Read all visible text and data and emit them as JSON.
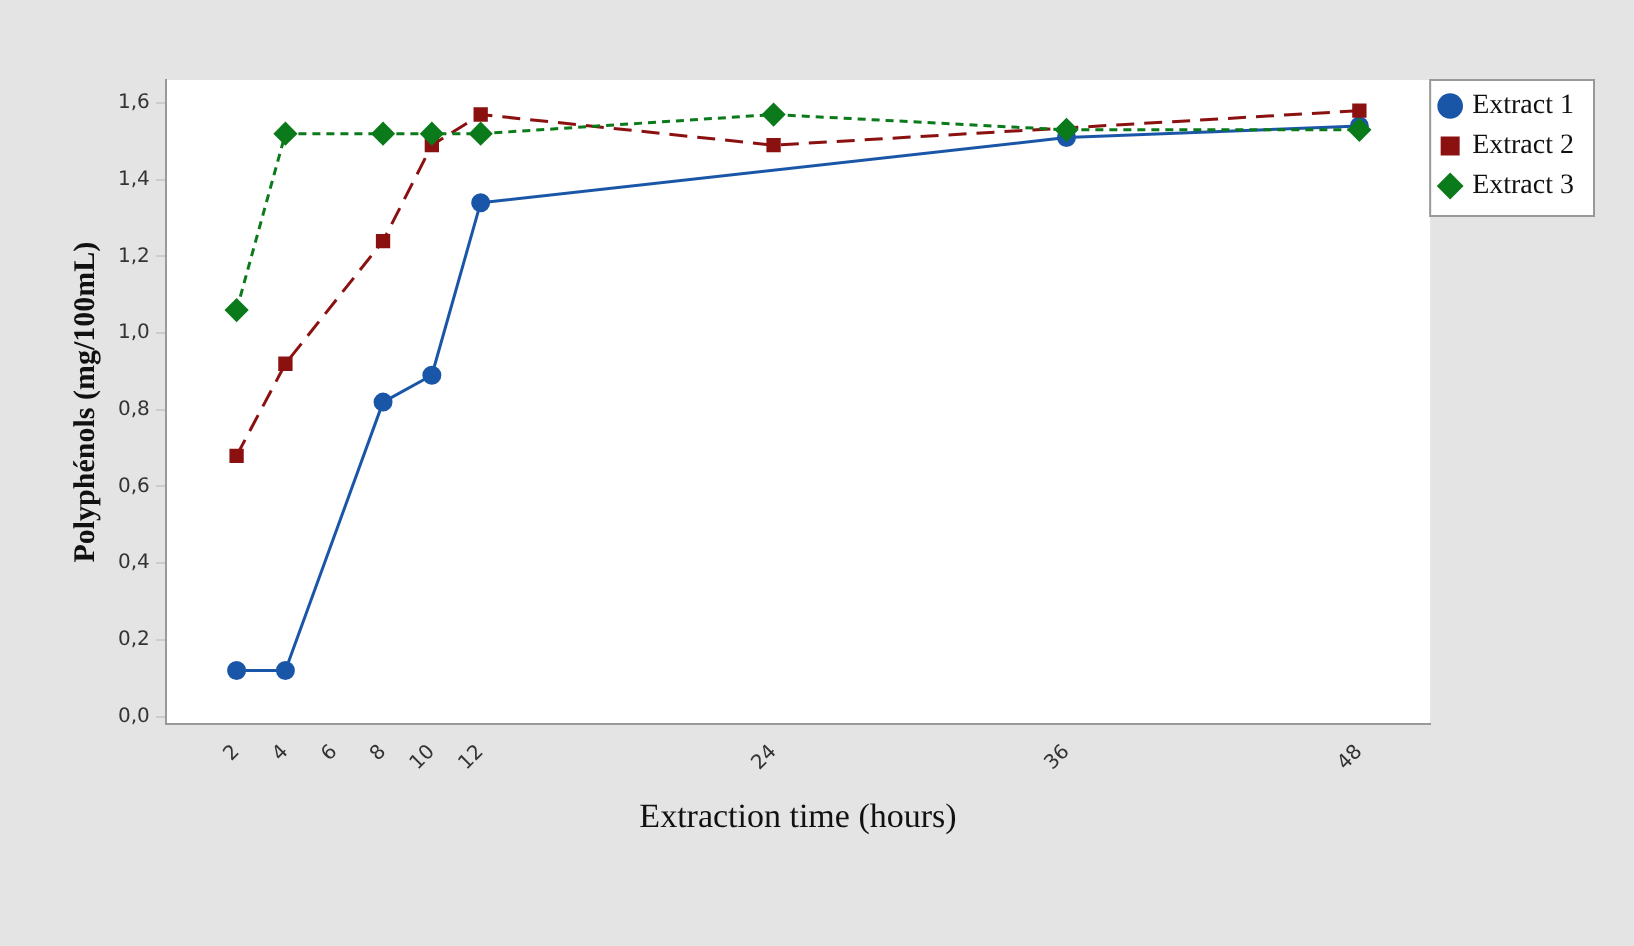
{
  "chart_data": {
    "type": "line",
    "xlabel": "Extraction time (hours)",
    "ylabel": "Polyphénols (mg/100mL)",
    "xlim": [
      -0.9,
      50.9
    ],
    "xticks": [
      2,
      4,
      6,
      8,
      10,
      12,
      24,
      36,
      48
    ],
    "ylim": [
      -0.02,
      1.66
    ],
    "yticks": [
      {
        "value": 0,
        "label": "0,0"
      },
      {
        "value": 0.2,
        "label": "0,2"
      },
      {
        "value": 0.4,
        "label": "0,4"
      },
      {
        "value": 0.6,
        "label": "0,6"
      },
      {
        "value": 0.8,
        "label": "0,8"
      },
      {
        "value": 1.0,
        "label": "1,0"
      },
      {
        "value": 1.2,
        "label": "1,2"
      },
      {
        "value": 1.4,
        "label": "1,4"
      },
      {
        "value": 1.6,
        "label": "1,6"
      }
    ],
    "series": [
      {
        "name": "Extract 1",
        "color": "#1a56a8",
        "marker": "circle",
        "line_style": "solid",
        "x": [
          2,
          4,
          8,
          10,
          12,
          36,
          48
        ],
        "values": [
          0.12,
          0.12,
          0.82,
          0.89,
          1.34,
          1.51,
          1.54
        ]
      },
      {
        "name": "Extract 2",
        "color": "#8b1010",
        "marker": "square",
        "line_style": "dashed",
        "x": [
          2,
          4,
          8,
          10,
          12,
          24,
          48
        ],
        "values": [
          0.68,
          0.92,
          1.24,
          1.49,
          1.57,
          1.49,
          1.58
        ]
      },
      {
        "name": "Extract 3",
        "color": "#0a7a1a",
        "marker": "diamond",
        "line_style": "dotted",
        "x": [
          2,
          4,
          8,
          10,
          12,
          24,
          36,
          48
        ],
        "values": [
          1.06,
          1.52,
          1.52,
          1.52,
          1.52,
          1.57,
          1.53,
          1.53
        ]
      }
    ],
    "grid": false,
    "legend": "top right"
  }
}
